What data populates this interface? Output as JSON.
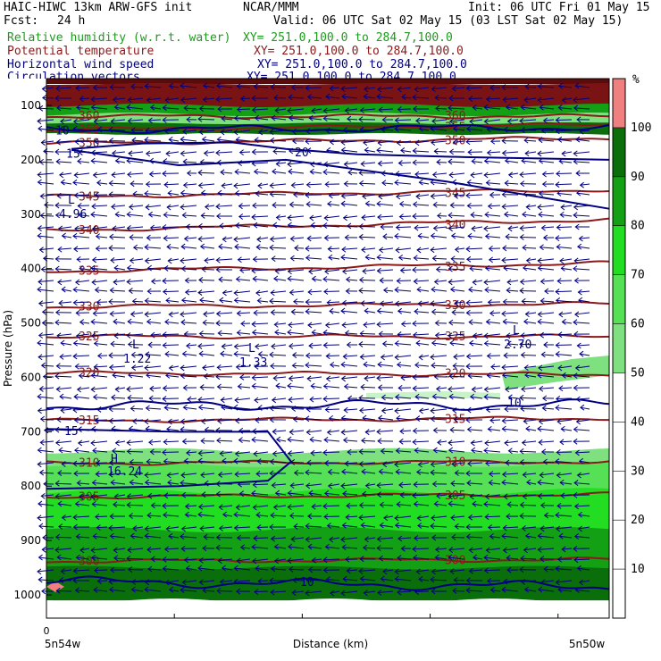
{
  "header": {
    "model": "HAIC-HIWC 13km ARW-GFS init",
    "agency": "NCAR/MMM",
    "init": "Init: 06 UTC Fri 01 May 15",
    "fcst_label": "Fcst:",
    "fcst_value": "24 h",
    "valid": "Valid: 06 UTC Sat 02 May 15 (03 LST Sat 02 May 15)"
  },
  "legend": [
    {
      "name": "Relative humidity (w.r.t. water)",
      "xy": "XY= 251.0,100.0 to 284.7,100.0",
      "color": "#1e9a1e"
    },
    {
      "name": "Potential temperature",
      "xy": "XY= 251.0,100.0 to 284.7,100.0",
      "color": "#8b1a1a"
    },
    {
      "name": "Horizontal wind speed",
      "xy": "XY= 251.0,100.0 to 284.7,100.0",
      "color": "#000080"
    },
    {
      "name": "Circulation vectors",
      "xy": "XY= 251.0,100.0 to 284.7,100.0",
      "color": "#000080"
    }
  ],
  "chart_data": {
    "type": "heatmap",
    "ylabel": "Pressure (hPa)",
    "xlabel": "Distance (km)",
    "x_tick_zero": "0",
    "x_start_label": "5n54w",
    "x_end_label": "5n50w",
    "yticks": [
      100,
      200,
      300,
      400,
      500,
      600,
      700,
      800,
      900,
      1000
    ],
    "colorbar": {
      "unit": "%",
      "levels": [
        10,
        20,
        30,
        40,
        50,
        60,
        70,
        80,
        90,
        100
      ],
      "colors": [
        "#ffffff",
        "#ffffff",
        "#ffffff",
        "#ffffff",
        "#ffffff",
        "#7fe07f",
        "#55e055",
        "#22dd22",
        "#14a014",
        "#0a6e0a",
        "#f08080"
      ]
    },
    "theta_contours": [
      {
        "label": "360",
        "p_left": 120,
        "p_right": 120
      },
      {
        "label": "355",
        "p_left": 145,
        "p_right": 135
      },
      {
        "label": "350",
        "p_left": 170,
        "p_right": 160
      },
      {
        "label": "345",
        "p_left": 268,
        "p_right": 255
      },
      {
        "label": "340",
        "p_left": 330,
        "p_right": 310
      },
      {
        "label": "335",
        "p_left": 405,
        "p_right": 390
      },
      {
        "label": "330",
        "p_left": 470,
        "p_right": 465
      },
      {
        "label": "325",
        "p_left": 525,
        "p_right": 525
      },
      {
        "label": "320",
        "p_left": 592,
        "p_right": 595
      },
      {
        "label": "315",
        "p_left": 680,
        "p_right": 675
      },
      {
        "label": "310",
        "p_left": 758,
        "p_right": 755
      },
      {
        "label": "305",
        "p_left": 820,
        "p_right": 815
      },
      {
        "label": "300",
        "p_left": 938,
        "p_right": 935
      }
    ],
    "wind_labels": [
      "10",
      "15",
      "20",
      "10",
      "15",
      "10",
      "10"
    ],
    "lows": [
      {
        "mark": "L",
        "value": "4.96"
      },
      {
        "mark": "L",
        "value": "1.22"
      },
      {
        "mark": "L",
        "value": "1.33"
      },
      {
        "mark": "L",
        "value": "2.70"
      }
    ],
    "highs": [
      {
        "mark": "H",
        "value": "16.24"
      }
    ]
  }
}
